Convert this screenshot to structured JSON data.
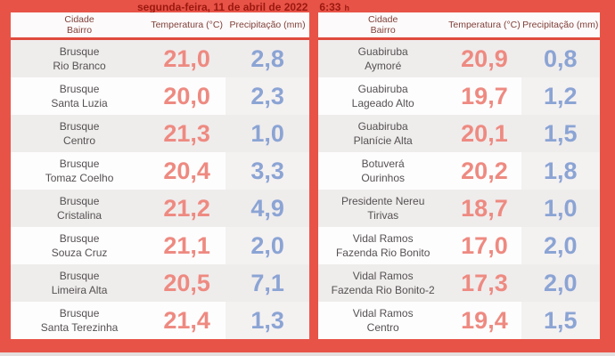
{
  "header": {
    "title": "segunda-feira, 11 de abril de 2022",
    "time": "6:33",
    "time_unit": "h"
  },
  "columns": {
    "city_line1": "Cidade",
    "city_line2": "Bairro",
    "temperature": "Temperatura (°C)",
    "precipitation": "Precipitação (mm)"
  },
  "chart_data": {
    "type": "table",
    "title": "segunda-feira, 11 de abril de 2022 6:33 h",
    "columns": [
      "Cidade / Bairro",
      "Temperatura (°C)",
      "Precipitação (mm)"
    ],
    "tables": {
      "left": {
        "rows": [
          {
            "city": "Brusque",
            "district": "Rio Branco",
            "temperature": "21,0",
            "precipitation": "2,8"
          },
          {
            "city": "Brusque",
            "district": "Santa Luzia",
            "temperature": "20,0",
            "precipitation": "2,3"
          },
          {
            "city": "Brusque",
            "district": "Centro",
            "temperature": "21,3",
            "precipitation": "1,0"
          },
          {
            "city": "Brusque",
            "district": "Tomaz Coelho",
            "temperature": "20,4",
            "precipitation": "3,3"
          },
          {
            "city": "Brusque",
            "district": "Cristalina",
            "temperature": "21,2",
            "precipitation": "4,9"
          },
          {
            "city": "Brusque",
            "district": "Souza Cruz",
            "temperature": "21,1",
            "precipitation": "2,0"
          },
          {
            "city": "Brusque",
            "district": "Limeira Alta",
            "temperature": "20,5",
            "precipitation": "7,1"
          },
          {
            "city": "Brusque",
            "district": "Santa Terezinha",
            "temperature": "21,4",
            "precipitation": "1,3"
          }
        ]
      },
      "right": {
        "rows": [
          {
            "city": "Guabiruba",
            "district": "Aymoré",
            "temperature": "20,9",
            "precipitation": "0,8"
          },
          {
            "city": "Guabiruba",
            "district": "Lageado Alto",
            "temperature": "19,7",
            "precipitation": "1,2"
          },
          {
            "city": "Guabiruba",
            "district": "Planície Alta",
            "temperature": "20,1",
            "precipitation": "1,5"
          },
          {
            "city": "Botuverá",
            "district": "Ourinhos",
            "temperature": "20,2",
            "precipitation": "1,8"
          },
          {
            "city": "Presidente Nereu",
            "district": "Tirivas",
            "temperature": "18,7",
            "precipitation": "1,0"
          },
          {
            "city": "Vidal Ramos",
            "district": "Fazenda Rio Bonito",
            "temperature": "17,0",
            "precipitation": "2,0"
          },
          {
            "city": "Vidal Ramos",
            "district": "Fazenda Rio Bonito-2",
            "temperature": "17,3",
            "precipitation": "2,0"
          },
          {
            "city": "Vidal Ramos",
            "district": "Centro",
            "temperature": "19,4",
            "precipitation": "1,5"
          }
        ]
      }
    }
  },
  "colors": {
    "frame_red": "#e85347",
    "header_underline_red": "#df4a3e",
    "title_text": "#9b180f",
    "header_text": "#80413b",
    "city_text": "#555152",
    "temperature_value": "#ee8a81",
    "precipitation_value": "#8ba4d4",
    "row_alt_bg": "#efecec"
  }
}
